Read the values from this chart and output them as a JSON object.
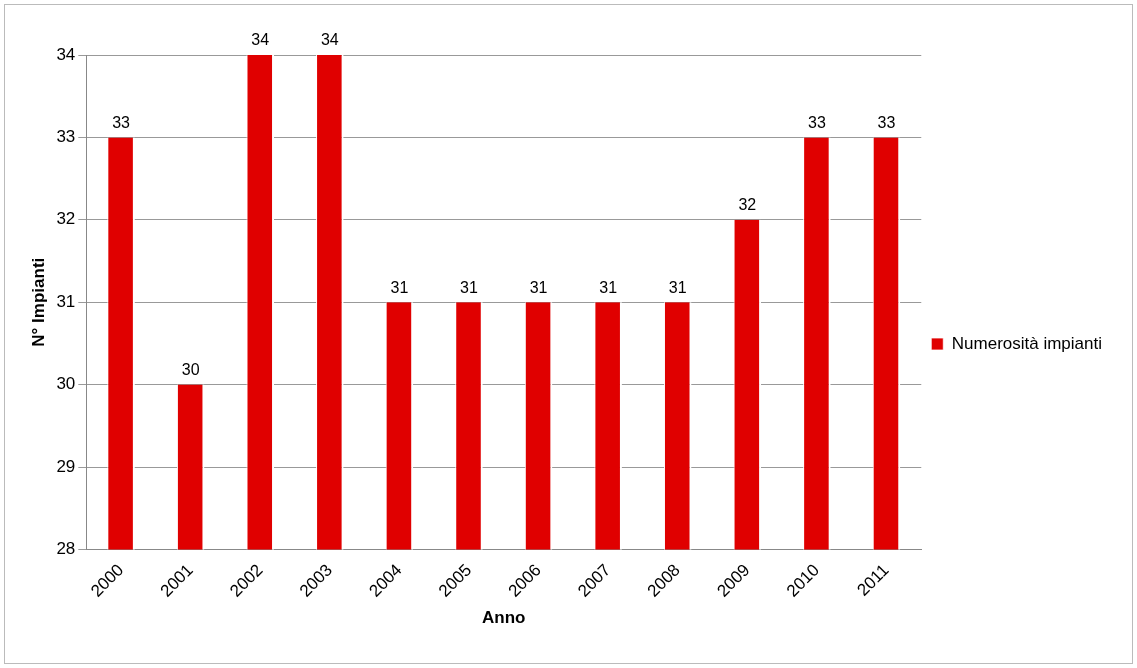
{
  "chart_data": {
    "type": "bar",
    "xlabel": "Anno",
    "ylabel": "N° Impianti",
    "categories": [
      "2000",
      "2001",
      "2002",
      "2003",
      "2004",
      "2005",
      "2006",
      "2007",
      "2008",
      "2009",
      "2010",
      "2011"
    ],
    "series": [
      {
        "name": "Numerosità impianti",
        "color": "#e00000",
        "values": [
          33,
          30,
          34,
          34,
          31,
          31,
          31,
          31,
          31,
          32,
          33,
          33
        ]
      }
    ],
    "ylim": [
      28,
      34
    ],
    "yticks": [
      28,
      29,
      30,
      31,
      32,
      33,
      34
    ],
    "grid": "y",
    "legend": "right",
    "data_labels": true
  }
}
